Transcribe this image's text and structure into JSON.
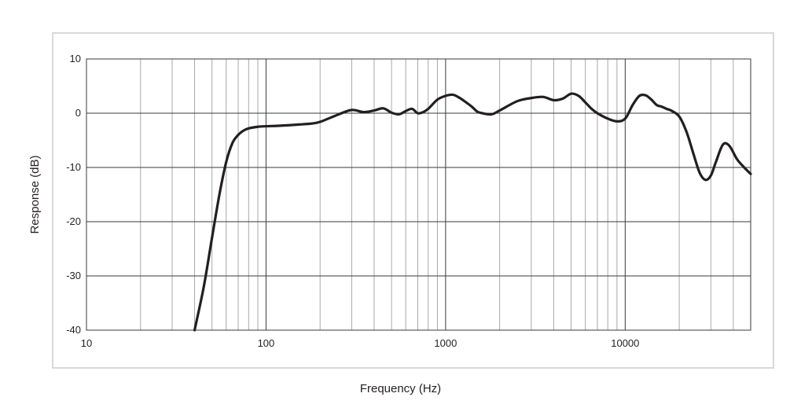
{
  "chart_data": {
    "type": "line",
    "title": "",
    "xlabel": "Frequency (Hz)",
    "ylabel": "Response (dB)",
    "x_scale": "log",
    "xlim": [
      10,
      50000
    ],
    "ylim": [
      -40,
      10
    ],
    "x_tick_labels": [
      "10",
      "100",
      "1000",
      "10000"
    ],
    "x_tick_values": [
      10,
      100,
      1000,
      10000
    ],
    "y_tick_labels": [
      "10",
      "0",
      "-10",
      "-20",
      "-30",
      "-40"
    ],
    "y_tick_values": [
      10,
      0,
      -10,
      -20,
      -30,
      -40
    ],
    "grid": true,
    "line_color": "#231f20",
    "grid_color": "#9e9e9e",
    "series": [
      {
        "x": [
          40,
          45,
          50,
          55,
          60,
          65,
          70,
          75,
          80,
          90,
          100,
          120,
          150,
          180,
          200,
          250,
          300,
          350,
          400,
          450,
          500,
          550,
          600,
          650,
          700,
          750,
          800,
          900,
          1000,
          1100,
          1200,
          1300,
          1400,
          1500,
          1600,
          1800,
          2000,
          2500,
          3000,
          3500,
          4000,
          4500,
          5000,
          5500,
          6000,
          6500,
          7000,
          8000,
          9000,
          10000,
          11000,
          12000,
          13000,
          14000,
          15000,
          16000,
          17000,
          18000,
          20000,
          22000,
          24000,
          26000,
          28000,
          30000,
          32000,
          35000,
          38000,
          42000,
          46000,
          50000
        ],
        "y": [
          -40,
          -32,
          -23,
          -15,
          -9,
          -5.5,
          -4,
          -3.2,
          -2.8,
          -2.5,
          -2.4,
          -2.3,
          -2.1,
          -1.9,
          -1.6,
          -0.3,
          0.6,
          0.2,
          0.5,
          0.9,
          0.1,
          -0.2,
          0.4,
          0.8,
          0,
          0.2,
          0.8,
          2.5,
          3.2,
          3.4,
          2.8,
          2,
          1.2,
          0.3,
          0,
          -0.2,
          0.5,
          2.2,
          2.8,
          3,
          2.4,
          2.7,
          3.6,
          3.2,
          2,
          0.8,
          0,
          -1,
          -1.5,
          -1,
          1.5,
          3.2,
          3.3,
          2.5,
          1.5,
          1.2,
          0.8,
          0.5,
          -0.6,
          -3.5,
          -7.5,
          -11,
          -12.3,
          -11.5,
          -9,
          -5.8,
          -6,
          -8.5,
          -10,
          -11.2
        ]
      }
    ]
  }
}
